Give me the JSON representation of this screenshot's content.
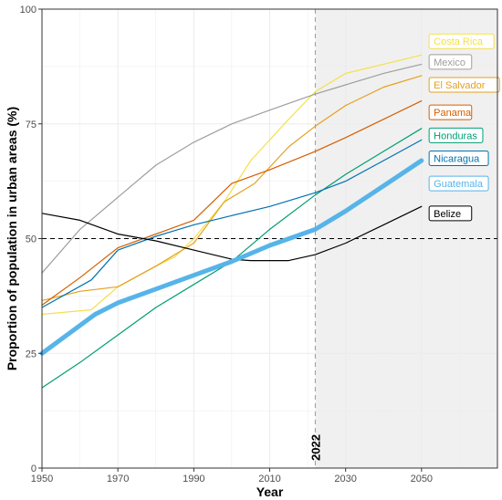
{
  "chart_data": {
    "type": "line",
    "xlabel": "Year",
    "ylabel": "Proportion of population in urban areas (%)",
    "xlim": [
      1950,
      2070
    ],
    "ylim": [
      0,
      100
    ],
    "x_ticks": [
      1950,
      1970,
      1990,
      2010,
      2030,
      2050
    ],
    "y_ticks": [
      0,
      25,
      50,
      75,
      100
    ],
    "grid": "on",
    "reference_hline": 50,
    "marker_year": 2022,
    "marker_label": "2022",
    "projection_shading": "from 2022",
    "series": [
      {
        "name": "Costa Rica",
        "color": "#f5e04a",
        "x": [
          1950,
          1963,
          1970,
          1980,
          1985,
          1990,
          1998,
          2005,
          2015,
          2022,
          2030,
          2040,
          2050
        ],
        "y": [
          33.5,
          34.5,
          39.5,
          44,
          46,
          50,
          58,
          67,
          76,
          82,
          86,
          88,
          90
        ]
      },
      {
        "name": "Mexico",
        "color": "#9e9e9e",
        "x": [
          1950,
          1960,
          1970,
          1980,
          1990,
          2000,
          2010,
          2022,
          2030,
          2040,
          2050
        ],
        "y": [
          42.5,
          52,
          59,
          66,
          71,
          75,
          78,
          81.5,
          83.5,
          86,
          88
        ]
      },
      {
        "name": "El Salvador",
        "color": "#e69f1f",
        "x": [
          1950,
          1960,
          1970,
          1980,
          1990,
          1998,
          2006,
          2015,
          2022,
          2030,
          2040,
          2050
        ],
        "y": [
          36.5,
          38.5,
          39.5,
          44,
          49,
          58,
          62,
          70,
          74.5,
          79,
          83,
          85.5
        ]
      },
      {
        "name": "Panama",
        "color": "#d55e00",
        "x": [
          1950,
          1960,
          1970,
          1980,
          1990,
          2000,
          2010,
          2022,
          2030,
          2040,
          2050
        ],
        "y": [
          35.5,
          41.5,
          48,
          51,
          54,
          62,
          65,
          69,
          72,
          76,
          80
        ]
      },
      {
        "name": "Honduras",
        "color": "#009e73",
        "x": [
          1950,
          1960,
          1970,
          1980,
          1990,
          2000,
          2010,
          2022,
          2030,
          2040,
          2050
        ],
        "y": [
          17.5,
          23,
          29,
          35,
          40,
          45,
          52,
          59.5,
          64,
          69,
          74
        ]
      },
      {
        "name": "Nicaragua",
        "color": "#0072b2",
        "x": [
          1950,
          1963,
          1970,
          1980,
          1990,
          2000,
          2010,
          2022,
          2030,
          2040,
          2050
        ],
        "y": [
          35,
          41,
          47.5,
          50.5,
          53,
          55,
          57,
          60,
          62.5,
          67,
          71.5
        ]
      },
      {
        "name": "Guatemala",
        "color": "#56b4e9",
        "x": [
          1950,
          1964,
          1970,
          1980,
          1990,
          2000,
          2010,
          2022,
          2030,
          2040,
          2050
        ],
        "y": [
          25,
          33.5,
          36,
          39,
          42,
          45,
          48.5,
          52,
          56,
          61.5,
          67
        ]
      },
      {
        "name": "Belize",
        "color": "#000000",
        "x": [
          1950,
          1960,
          1970,
          1980,
          1990,
          2000,
          2005,
          2015,
          2022,
          2030,
          2040,
          2050
        ],
        "y": [
          55.5,
          54,
          51,
          49.5,
          47.5,
          45.5,
          45.2,
          45.2,
          46.5,
          49,
          53,
          57
        ]
      }
    ]
  }
}
